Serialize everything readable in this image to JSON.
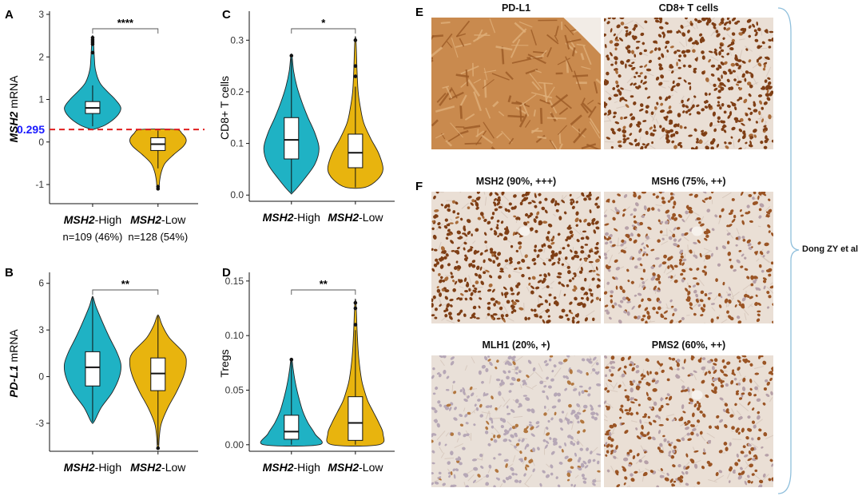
{
  "panel_labels": [
    "A",
    "B",
    "C",
    "D",
    "E",
    "F"
  ],
  "colors": {
    "high": "#1fb2c4",
    "low": "#e8b40e",
    "cutoff_line": "#e01f1f",
    "cutoff_text": "#1a1aff",
    "tissue_brown": "#8a4a1c",
    "bracket": "#8fbfdc"
  },
  "x_categories": [
    {
      "gene": "MSH2",
      "suffix": "-High"
    },
    {
      "gene": "MSH2",
      "suffix": "-Low"
    }
  ],
  "sample_counts": [
    "n=109 (46%)",
    "n=128 (54%)"
  ],
  "cutoff_label": "0.295",
  "chart_data": [
    {
      "panel": "A",
      "type": "violin",
      "ylabel_gene": "MSH2",
      "ylabel_suffix": " mRNA",
      "ylim": [
        -1.45,
        3.0
      ],
      "yticks": [
        -1,
        0,
        1,
        2,
        3
      ],
      "cutoff": 0.295,
      "significance": "****",
      "series": [
        {
          "group": "MSH2-High",
          "min": 0.295,
          "q1": 0.67,
          "median": 0.8,
          "q3": 0.95,
          "max": 2.45,
          "whisker_low": 0.37,
          "whisker_high": 1.33,
          "outliers": [
            2.1,
            2.3,
            2.35,
            2.4,
            2.45
          ],
          "profile": [
            [
              0.295,
              0.03
            ],
            [
              0.4,
              0.45
            ],
            [
              0.6,
              0.85
            ],
            [
              0.8,
              1.0
            ],
            [
              1.0,
              0.8
            ],
            [
              1.2,
              0.5
            ],
            [
              1.4,
              0.25
            ],
            [
              1.7,
              0.1
            ],
            [
              2.0,
              0.06
            ],
            [
              2.45,
              0.02
            ]
          ]
        },
        {
          "group": "MSH2-Low",
          "min": -1.1,
          "q1": -0.2,
          "median": -0.05,
          "q3": 0.1,
          "max": 0.295,
          "whisker_low": -0.62,
          "whisker_high": 0.27,
          "outliers": [
            -1.05,
            -1.1
          ],
          "profile": [
            [
              -1.1,
              0.03
            ],
            [
              -0.9,
              0.06
            ],
            [
              -0.7,
              0.12
            ],
            [
              -0.5,
              0.25
            ],
            [
              -0.3,
              0.55
            ],
            [
              -0.1,
              0.9
            ],
            [
              0.05,
              1.0
            ],
            [
              0.2,
              0.85
            ],
            [
              0.295,
              0.6
            ]
          ]
        }
      ]
    },
    {
      "panel": "B",
      "type": "violin",
      "ylabel_gene": "PD-L1",
      "ylabel_suffix": " mRNA",
      "ylim": [
        -4.8,
        6.5
      ],
      "yticks": [
        -3,
        0,
        3,
        6
      ],
      "significance": "**",
      "series": [
        {
          "group": "MSH2-High",
          "min": -2.9,
          "q1": -0.6,
          "median": 0.6,
          "q3": 1.6,
          "max": 5.1,
          "whisker_low": -2.9,
          "whisker_high": 5.1,
          "outliers": [],
          "profile": [
            [
              -2.9,
              0.05
            ],
            [
              -2,
              0.3
            ],
            [
              -1,
              0.7
            ],
            [
              0,
              0.95
            ],
            [
              0.8,
              1.0
            ],
            [
              1.6,
              0.85
            ],
            [
              2.5,
              0.6
            ],
            [
              3.5,
              0.35
            ],
            [
              4.5,
              0.12
            ],
            [
              5.1,
              0.02
            ]
          ]
        },
        {
          "group": "MSH2-Low",
          "min": -4.6,
          "q1": -0.9,
          "median": 0.2,
          "q3": 1.2,
          "max": 3.9,
          "whisker_low": -4.4,
          "whisker_high": 3.9,
          "outliers": [
            -4.6
          ],
          "profile": [
            [
              -4.6,
              0.02
            ],
            [
              -3.8,
              0.05
            ],
            [
              -3,
              0.12
            ],
            [
              -2,
              0.35
            ],
            [
              -1,
              0.65
            ],
            [
              0,
              0.9
            ],
            [
              0.8,
              1.0
            ],
            [
              1.5,
              0.92
            ],
            [
              2.5,
              0.4
            ],
            [
              3.3,
              0.15
            ],
            [
              3.9,
              0.03
            ]
          ]
        }
      ]
    },
    {
      "panel": "C",
      "type": "violin",
      "ylabel": "CD8+ T cells",
      "ylim": [
        -0.012,
        0.35
      ],
      "yticks": [
        0.0,
        0.1,
        0.2,
        0.3
      ],
      "significance": "*",
      "series": [
        {
          "group": "MSH2-High",
          "min": 0.005,
          "q1": 0.07,
          "median": 0.107,
          "q3": 0.15,
          "max": 0.27,
          "whisker_low": 0.005,
          "whisker_high": 0.265,
          "outliers": [
            0.27
          ],
          "profile": [
            [
              0.005,
              0.05
            ],
            [
              0.03,
              0.45
            ],
            [
              0.06,
              0.85
            ],
            [
              0.09,
              1.0
            ],
            [
              0.12,
              0.85
            ],
            [
              0.15,
              0.6
            ],
            [
              0.18,
              0.38
            ],
            [
              0.21,
              0.2
            ],
            [
              0.24,
              0.08
            ],
            [
              0.27,
              0.02
            ]
          ]
        },
        {
          "group": "MSH2-Low",
          "min": 0.015,
          "q1": 0.053,
          "median": 0.082,
          "q3": 0.118,
          "max": 0.3,
          "whisker_low": 0.015,
          "whisker_high": 0.21,
          "outliers": [
            0.23,
            0.25,
            0.3
          ],
          "profile": [
            [
              0.015,
              0.35
            ],
            [
              0.03,
              0.8
            ],
            [
              0.05,
              1.0
            ],
            [
              0.08,
              0.85
            ],
            [
              0.11,
              0.55
            ],
            [
              0.14,
              0.3
            ],
            [
              0.17,
              0.18
            ],
            [
              0.2,
              0.1
            ],
            [
              0.24,
              0.06
            ],
            [
              0.3,
              0.02
            ]
          ]
        }
      ]
    },
    {
      "panel": "D",
      "type": "violin",
      "ylabel": "Tregs",
      "ylim": [
        -0.006,
        0.155
      ],
      "yticks": [
        0.0,
        0.05,
        0.1,
        0.15
      ],
      "significance": "**",
      "series": [
        {
          "group": "MSH2-High",
          "min": 0.0,
          "q1": 0.005,
          "median": 0.012,
          "q3": 0.027,
          "max": 0.078,
          "whisker_low": 0.0,
          "whisker_high": 0.078,
          "outliers": [
            0.078
          ],
          "profile": [
            [
              0.0,
              1.0
            ],
            [
              0.01,
              0.85
            ],
            [
              0.02,
              0.6
            ],
            [
              0.03,
              0.42
            ],
            [
              0.04,
              0.3
            ],
            [
              0.05,
              0.2
            ],
            [
              0.06,
              0.12
            ],
            [
              0.07,
              0.06
            ],
            [
              0.078,
              0.02
            ]
          ]
        },
        {
          "group": "MSH2-Low",
          "min": 0.0,
          "q1": 0.004,
          "median": 0.02,
          "q3": 0.044,
          "max": 0.13,
          "whisker_low": 0.0,
          "whisker_high": 0.105,
          "outliers": [
            0.11,
            0.125,
            0.13
          ],
          "profile": [
            [
              0.0,
              0.85
            ],
            [
              0.01,
              1.0
            ],
            [
              0.02,
              0.85
            ],
            [
              0.03,
              0.65
            ],
            [
              0.04,
              0.45
            ],
            [
              0.05,
              0.32
            ],
            [
              0.06,
              0.22
            ],
            [
              0.08,
              0.12
            ],
            [
              0.1,
              0.07
            ],
            [
              0.13,
              0.02
            ]
          ]
        }
      ]
    }
  ],
  "ihc_images": [
    {
      "title": "PD-L1",
      "stain": "membrane"
    },
    {
      "title": "CD8+ T cells",
      "stain": "nuclei-dense"
    },
    {
      "title": "MSH2 (90%, +++)",
      "stain": "nuclei-dense"
    },
    {
      "title": "MSH6 (75%, ++)",
      "stain": "nuclei-medium"
    },
    {
      "title": "MLH1 (20%, +)",
      "stain": "nuclei-weak"
    },
    {
      "title": "PMS2 (60%, ++)",
      "stain": "nuclei-medium"
    }
  ],
  "credit": "Dong ZY et al"
}
